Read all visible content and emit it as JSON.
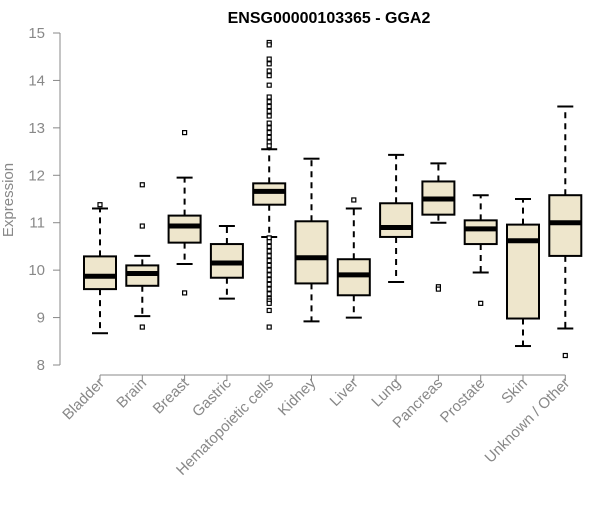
{
  "chart_data": {
    "type": "boxplot",
    "title": "ENSG00000103365 - GGA2",
    "xlabel": "",
    "ylabel": "Expression",
    "ylim": [
      8,
      15
    ],
    "yticks": [
      8,
      9,
      10,
      11,
      12,
      13,
      14,
      15
    ],
    "categories": [
      "Bladder",
      "Brain",
      "Breast",
      "Gastric",
      "Hematopoietic cells",
      "Kidney",
      "Liver",
      "Lung",
      "Pancreas",
      "Prostate",
      "Skin",
      "Unknown / Other"
    ],
    "boxes": [
      {
        "category": "Bladder",
        "whisker_low": 8.67,
        "q1": 9.6,
        "median": 9.87,
        "q3": 10.29,
        "whisker_high": 11.3,
        "outliers": [
          11.38
        ]
      },
      {
        "category": "Brain",
        "whisker_low": 9.03,
        "q1": 9.67,
        "median": 9.93,
        "q3": 10.1,
        "whisker_high": 10.3,
        "outliers": [
          11.8,
          10.93,
          8.8
        ]
      },
      {
        "category": "Breast",
        "whisker_low": 10.13,
        "q1": 10.58,
        "median": 10.93,
        "q3": 11.15,
        "whisker_high": 11.95,
        "outliers": [
          12.9,
          9.52
        ]
      },
      {
        "category": "Gastric",
        "whisker_low": 9.4,
        "q1": 9.84,
        "median": 10.15,
        "q3": 10.55,
        "whisker_high": 10.93,
        "outliers": []
      },
      {
        "category": "Hematopoietic cells",
        "whisker_low": 10.7,
        "q1": 11.38,
        "median": 11.66,
        "q3": 11.83,
        "whisker_high": 12.55,
        "outliers": [
          14.8,
          14.75,
          14.45,
          14.35,
          14.2,
          14.1,
          13.9,
          13.65,
          13.55,
          13.45,
          13.35,
          13.25,
          13.1,
          13.0,
          12.9,
          12.8,
          12.7,
          12.62,
          10.68,
          10.6,
          10.5,
          10.4,
          10.3,
          10.2,
          10.1,
          10.0,
          9.9,
          9.8,
          9.7,
          9.6,
          9.5,
          9.4,
          9.35,
          9.3,
          9.15,
          8.8
        ]
      },
      {
        "category": "Kidney",
        "whisker_low": 8.92,
        "q1": 9.72,
        "median": 10.26,
        "q3": 11.03,
        "whisker_high": 12.35,
        "outliers": []
      },
      {
        "category": "Liver",
        "whisker_low": 9.0,
        "q1": 9.47,
        "median": 9.9,
        "q3": 10.23,
        "whisker_high": 11.3,
        "outliers": [
          11.48
        ]
      },
      {
        "category": "Lung",
        "whisker_low": 9.75,
        "q1": 10.7,
        "median": 10.9,
        "q3": 11.41,
        "whisker_high": 12.43,
        "outliers": []
      },
      {
        "category": "Pancreas",
        "whisker_low": 11.0,
        "q1": 11.17,
        "median": 11.5,
        "q3": 11.87,
        "whisker_high": 12.25,
        "outliers": [
          9.65,
          9.6
        ]
      },
      {
        "category": "Prostate",
        "whisker_low": 9.95,
        "q1": 10.55,
        "median": 10.87,
        "q3": 11.05,
        "whisker_high": 11.58,
        "outliers": [
          9.3
        ]
      },
      {
        "category": "Skin",
        "whisker_low": 8.4,
        "q1": 8.98,
        "median": 10.62,
        "q3": 10.96,
        "whisker_high": 11.5,
        "outliers": []
      },
      {
        "category": "Unknown / Other",
        "whisker_low": 8.77,
        "q1": 10.3,
        "median": 11.0,
        "q3": 11.58,
        "whisker_high": 13.45,
        "outliers": [
          8.2
        ]
      }
    ]
  },
  "colors": {
    "box_fill": "#EEE6CC",
    "box_stroke": "#000000",
    "axis": "#888888",
    "title": "#000000",
    "tick_label": "#888888"
  }
}
